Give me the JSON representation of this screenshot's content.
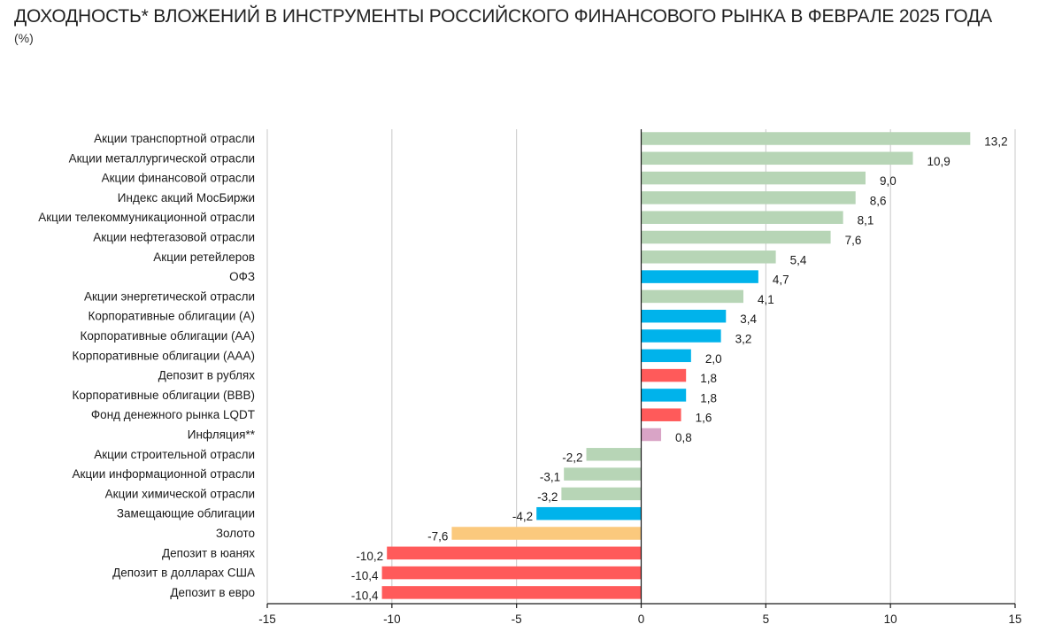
{
  "title": "ДОХОДНОСТЬ* ВЛОЖЕНИЙ В ИНСТРУМЕНТЫ РОССИЙСКОГО ФИНАНСОВОГО РЫНКА В ФЕВРАЛЕ 2025 ГОДА",
  "subtitle": "(%)",
  "chart_data": {
    "type": "bar",
    "orientation": "horizontal",
    "title": "ДОХОДНОСТЬ* ВЛОЖЕНИЙ В ИНСТРУМЕНТЫ РОССИЙСКОГО ФИНАНСОВОГО РЫНКА В ФЕВРАЛЕ 2025 ГОДА",
    "unit": "(%)",
    "xlim": [
      -15,
      15
    ],
    "xticks": [
      -15,
      -10,
      -5,
      0,
      5,
      10,
      15
    ],
    "grid": "vertical",
    "legend": "none",
    "colors": {
      "equity": "#b7d5b6",
      "bonds": "#00b3eb",
      "deposits": "#ff5a5a",
      "inflation": "#d9a4c6",
      "gold": "#fbc97d"
    },
    "categories": [
      "Акции транспортной отрасли",
      "Акции металлургической отрасли",
      "Акции финансовой отрасли",
      "Индекс акций МосБиржи",
      "Акции телекоммуникационной отрасли",
      "Акции нефтегазовой отрасли",
      "Акции ретейлеров",
      "ОФЗ",
      "Акции энергетической отрасли",
      "Корпоративные облигации (А)",
      "Корпоративные облигации (АА)",
      "Корпоративные облигации (ААА)",
      "Депозит в рублях",
      "Корпоративные облигации (ВВВ)",
      "Фонд денежного рынка LQDT",
      "Инфляция**",
      "Акции строительной отрасли",
      "Акции информационной отрасли",
      "Акции химической отрасли",
      "Замещающие облигации",
      "Золото",
      "Депозит в юанях",
      "Депозит в долларах США",
      "Депозит в евро"
    ],
    "values": [
      13.2,
      10.9,
      9.0,
      8.6,
      8.1,
      7.6,
      5.4,
      4.7,
      4.1,
      3.4,
      3.2,
      2.0,
      1.8,
      1.8,
      1.6,
      0.8,
      -2.2,
      -3.1,
      -3.2,
      -4.2,
      -7.6,
      -10.2,
      -10.4,
      -10.4
    ],
    "labels": [
      "13,2",
      "10,9",
      "9,0",
      "8,6",
      "8,1",
      "7,6",
      "5,4",
      "4,7",
      "4,1",
      "3,4",
      "3,2",
      "2,0",
      "1,8",
      "1,8",
      "1,6",
      "0,8",
      "-2,2",
      "-3,1",
      "-3,2",
      "-4,2",
      "-7,6",
      "-10,2",
      "-10,4",
      "-10,4"
    ],
    "groups": [
      "equity",
      "equity",
      "equity",
      "equity",
      "equity",
      "equity",
      "equity",
      "bonds",
      "equity",
      "bonds",
      "bonds",
      "bonds",
      "deposits",
      "bonds",
      "deposits",
      "inflation",
      "equity",
      "equity",
      "equity",
      "bonds",
      "gold",
      "deposits",
      "deposits",
      "deposits"
    ]
  }
}
